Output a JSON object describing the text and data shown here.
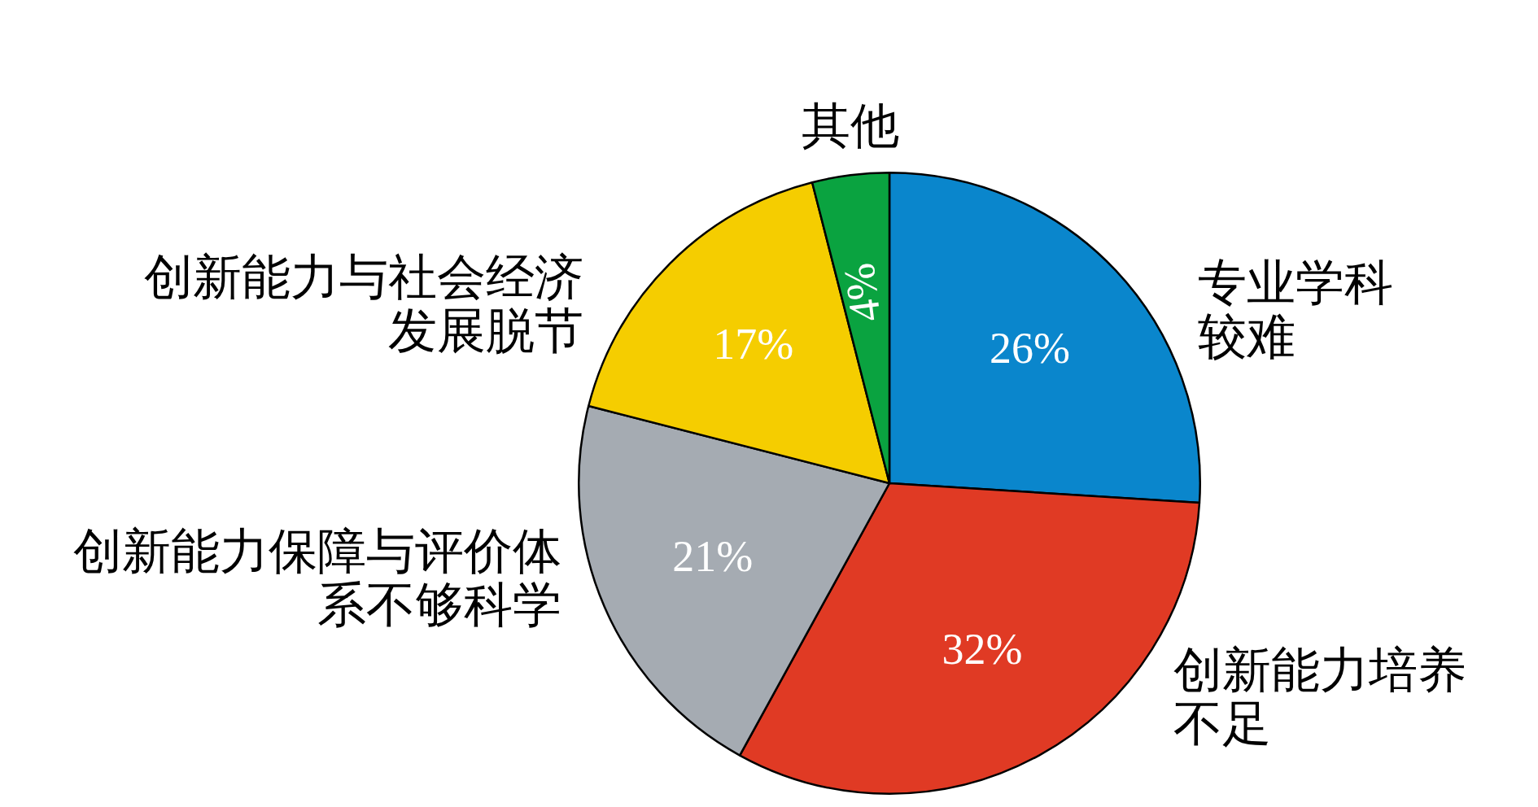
{
  "chart_data": {
    "type": "pie",
    "categories": [
      "专业学科较难",
      "创新能力培养不足",
      "创新能力保障与评价体系不够科学",
      "创新能力与社会经济发展脱节",
      "其他"
    ],
    "value_labels": [
      "26%",
      "32%",
      "21%",
      "17%",
      "4%"
    ],
    "values": [
      26,
      32,
      21,
      17,
      4
    ],
    "colors": [
      "#0a86cc",
      "#e03a24",
      "#a5abb2",
      "#f5cd00",
      "#0aa340"
    ],
    "legend": false
  }
}
